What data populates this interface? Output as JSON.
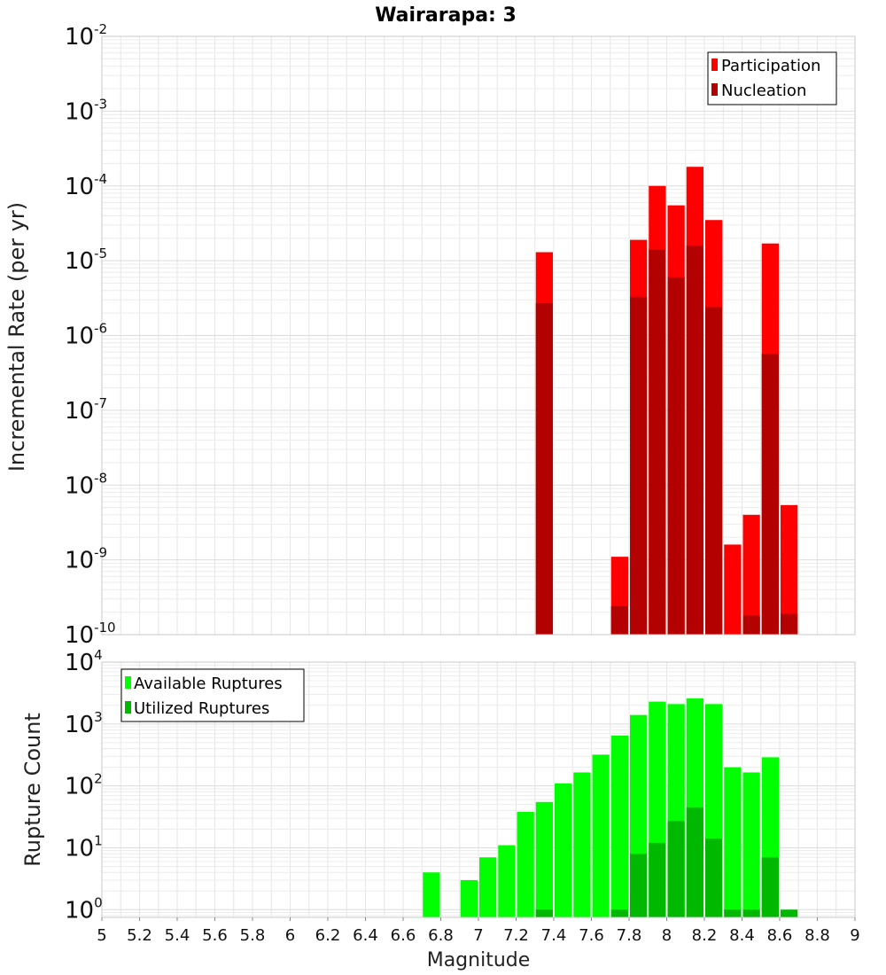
{
  "chart_data": [
    {
      "type": "bar",
      "title": "Wairarapa: 3",
      "ylabel": "Incremental Rate (per yr)",
      "y_scale": "log",
      "ylim": [
        1e-10,
        0.01
      ],
      "xlim": [
        5,
        9
      ],
      "grid": true,
      "legend_position": "top-right",
      "bar_width": 0.1,
      "series": [
        {
          "name": "Participation",
          "color": "#ff0000",
          "x": [
            7.35,
            7.75,
            7.85,
            7.95,
            8.05,
            8.15,
            8.25,
            8.35,
            8.45,
            8.55,
            8.65
          ],
          "values": [
            1.3e-05,
            1.1e-09,
            1.9e-05,
            0.0001,
            5.5e-05,
            0.00018,
            3.5e-05,
            1.6e-09,
            4e-09,
            1.7e-05,
            5.4e-09
          ]
        },
        {
          "name": "Nucleation",
          "color": "#b30000",
          "x": [
            7.35,
            7.75,
            7.85,
            7.95,
            8.05,
            8.15,
            8.25,
            8.55,
            8.65,
            8.45
          ],
          "values": [
            2.7e-06,
            2.4e-10,
            3.3e-06,
            1.4e-05,
            6e-06,
            1.6e-05,
            2.4e-06,
            5.7e-07,
            1.9e-10,
            1.8e-10
          ]
        }
      ]
    },
    {
      "type": "bar",
      "xlabel": "Magnitude",
      "ylabel": "Rupture Count",
      "y_scale": "log",
      "ylim": [
        0.75,
        10000
      ],
      "xlim": [
        5,
        9
      ],
      "grid": true,
      "legend_position": "top-left",
      "bar_width": 0.1,
      "xticks": [
        "5",
        "5.2",
        "5.4",
        "5.6",
        "5.8",
        "6",
        "6.2",
        "6.4",
        "6.6",
        "6.8",
        "7",
        "7.2",
        "7.4",
        "7.6",
        "7.8",
        "8",
        "8.2",
        "8.4",
        "8.6",
        "8.8",
        "9"
      ],
      "series": [
        {
          "name": "Available Ruptures",
          "color": "#00ff00",
          "x": [
            6.75,
            6.95,
            7.05,
            7.15,
            7.25,
            7.35,
            7.45,
            7.55,
            7.65,
            7.75,
            7.85,
            7.95,
            8.05,
            8.15,
            8.25,
            8.35,
            8.45,
            8.55
          ],
          "values": [
            4,
            3,
            7,
            11,
            38,
            55,
            110,
            165,
            320,
            650,
            1400,
            2300,
            2100,
            2600,
            2100,
            200,
            165,
            290
          ]
        },
        {
          "name": "Utilized Ruptures",
          "color": "#00b800",
          "x": [
            7.35,
            7.75,
            7.85,
            7.95,
            8.05,
            8.15,
            8.25,
            8.35,
            8.45,
            8.55,
            8.65
          ],
          "values": [
            1,
            1,
            8,
            12,
            27,
            45,
            14,
            1,
            1,
            7,
            1
          ]
        }
      ]
    }
  ]
}
